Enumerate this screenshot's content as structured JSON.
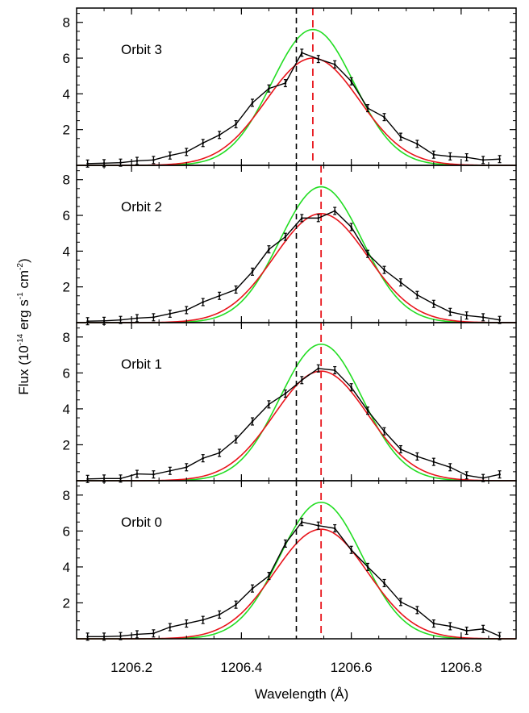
{
  "chart_data": {
    "type": "line",
    "xlabel": "Wavelength (Å)",
    "ylabel_parts": {
      "flux": "Flux (10",
      "exp1": "-14",
      "erg": " erg s",
      "exp2": "-1",
      "cm": " cm",
      "exp3": "-2",
      "close": ")"
    },
    "xlim": [
      1206.1,
      1206.9
    ],
    "ylim": [
      0,
      8.8
    ],
    "x_ticks": [
      1206.2,
      1206.4,
      1206.6,
      1206.8
    ],
    "x_tick_labels": [
      "1206.2",
      "1206.4",
      "1206.6",
      "1206.8"
    ],
    "y_ticks": [
      2,
      4,
      6,
      8
    ],
    "y_tick_labels": [
      "2",
      "4",
      "6",
      "8"
    ],
    "colors": {
      "data": "#000000",
      "fit": "#e8141b",
      "model": "#22dd22",
      "rest_line": "#000000",
      "shift_line": "#e8141b"
    },
    "wavelengths": [
      1206.12,
      1206.15,
      1206.18,
      1206.21,
      1206.24,
      1206.27,
      1206.3,
      1206.33,
      1206.36,
      1206.39,
      1206.42,
      1206.45,
      1206.48,
      1206.51,
      1206.54,
      1206.57,
      1206.6,
      1206.63,
      1206.66,
      1206.69,
      1206.72,
      1206.75,
      1206.78,
      1206.81,
      1206.84,
      1206.87
    ],
    "panels": [
      {
        "label": "Orbit 3",
        "data": [
          0.1,
          0.12,
          0.15,
          0.25,
          0.3,
          0.55,
          0.75,
          1.25,
          1.7,
          2.3,
          3.5,
          4.3,
          4.6,
          6.3,
          5.95,
          5.65,
          4.7,
          3.2,
          2.7,
          1.6,
          1.2,
          0.6,
          0.5,
          0.45,
          0.3,
          0.35
        ],
        "error": 0.2,
        "fit_center": 1206.53,
        "fit_amp": 6.0,
        "fit_sigma": 0.085,
        "model_center": 1206.53,
        "model_amp": 7.6,
        "model_sigma": 0.075,
        "rest_wavelength": 1206.5,
        "shift_wavelength": 1206.53
      },
      {
        "label": "Orbit 2",
        "data": [
          0.08,
          0.1,
          0.15,
          0.25,
          0.3,
          0.5,
          0.7,
          1.15,
          1.5,
          1.85,
          2.85,
          4.1,
          4.8,
          5.85,
          5.85,
          6.25,
          5.35,
          3.85,
          2.95,
          2.25,
          1.55,
          1.05,
          0.6,
          0.4,
          0.3,
          0.15
        ],
        "error": 0.2,
        "fit_center": 1206.545,
        "fit_amp": 6.1,
        "fit_sigma": 0.085,
        "model_center": 1206.545,
        "model_amp": 7.6,
        "model_sigma": 0.075,
        "rest_wavelength": 1206.5,
        "shift_wavelength": 1206.545
      },
      {
        "label": "Orbit 1",
        "data": [
          0.1,
          0.12,
          0.12,
          0.38,
          0.35,
          0.55,
          0.75,
          1.25,
          1.55,
          2.3,
          3.3,
          4.25,
          4.85,
          5.6,
          6.25,
          6.15,
          5.2,
          3.9,
          2.75,
          1.75,
          1.35,
          1.05,
          0.75,
          0.3,
          0.15,
          0.35
        ],
        "error": 0.2,
        "fit_center": 1206.545,
        "fit_amp": 6.1,
        "fit_sigma": 0.085,
        "model_center": 1206.545,
        "model_amp": 7.6,
        "model_sigma": 0.075,
        "rest_wavelength": 1206.5,
        "shift_wavelength": 1206.545
      },
      {
        "label": "Orbit 0",
        "data": [
          0.12,
          0.12,
          0.15,
          0.25,
          0.3,
          0.65,
          0.85,
          1.05,
          1.35,
          1.9,
          2.8,
          3.5,
          5.3,
          6.5,
          6.3,
          6.15,
          4.95,
          4.0,
          3.1,
          2.05,
          1.6,
          0.85,
          0.7,
          0.45,
          0.55,
          0.15
        ],
        "error": 0.2,
        "fit_center": 1206.545,
        "fit_amp": 6.1,
        "fit_sigma": 0.085,
        "model_center": 1206.545,
        "model_amp": 7.6,
        "model_sigma": 0.075,
        "rest_wavelength": 1206.5,
        "shift_wavelength": 1206.545
      }
    ]
  }
}
